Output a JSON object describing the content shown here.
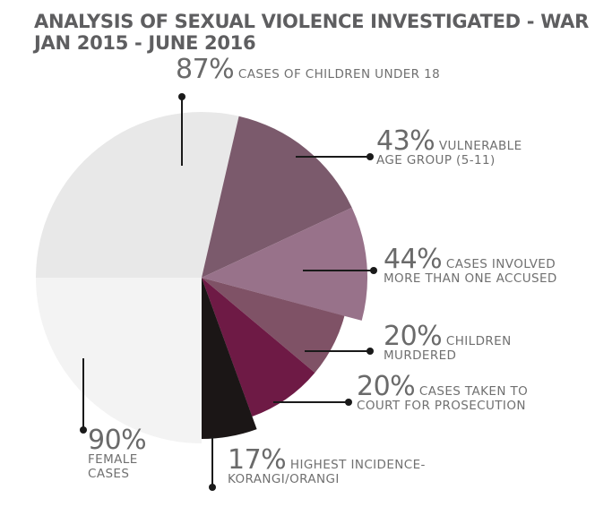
{
  "title": {
    "line1": "ANALYSIS OF SEXUAL VIOLENCE INVESTIGATED - WAR",
    "line2": "JAN 2015 - JUNE 2016"
  },
  "colors": {
    "title": "#5e5e60",
    "text": "#707070",
    "leader": "#1a1a1a"
  },
  "chart_data": {
    "type": "pie",
    "title": "ANALYSIS OF SEXUAL VIOLENCE INVESTIGATED - WAR JAN 2015 - JUNE 2016",
    "slices": [
      {
        "pct": "87%",
        "value": 87,
        "label": "CASES OF CHILDREN UNDER 18",
        "color": "#e8e8e8"
      },
      {
        "pct": "43%",
        "value": 43,
        "label": "VULNERABLE AGE GROUP (5-11)",
        "color": "#7b5a6c"
      },
      {
        "pct": "44%",
        "value": 44,
        "label": "CASES INVOLVED MORE THAN ONE ACCUSED",
        "color": "#98728a"
      },
      {
        "pct": "20%",
        "value": 20,
        "label": "CHILDREN MURDERED",
        "color": "#7f5266"
      },
      {
        "pct": "20%",
        "value": 20,
        "label": "CASES TAKEN TO COURT FOR PROSECUTION",
        "color": "#6e1a45"
      },
      {
        "pct": "17%",
        "value": 17,
        "label": "HIGHEST INCIDENCE-KORANGI/ORANGI",
        "color": "#1b1616"
      },
      {
        "pct": "90%",
        "value": 90,
        "label": "FEMALE CASES",
        "color": "#f3f3f3"
      }
    ]
  }
}
